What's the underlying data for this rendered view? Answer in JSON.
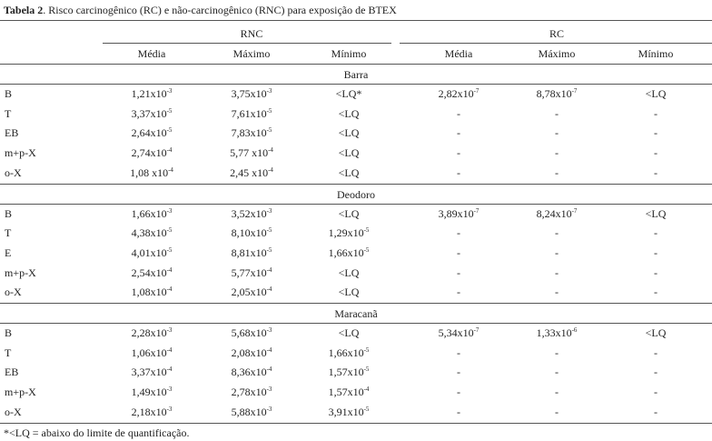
{
  "header": {
    "title_label": "Tabela 2",
    "title_text": ". Risco carcinogênico (RC) e não-carcinogênico (RNC) para exposição de BTEX"
  },
  "table": {
    "groups": [
      "RNC",
      "RC"
    ],
    "columns": [
      "Média",
      "Máximo",
      "Mínimo",
      "Média",
      "Máximo",
      "Mínimo"
    ],
    "sections": [
      {
        "name": "Barra",
        "rows": [
          {
            "label": "B",
            "cells": [
              {
                "m": "1,21x10",
                "e": "-3"
              },
              {
                "m": "3,75x10",
                "e": "-3"
              },
              "<LQ*",
              {
                "m": "2,82x10",
                "e": "-7"
              },
              {
                "m": "8,78x10",
                "e": "-7"
              },
              "<LQ"
            ]
          },
          {
            "label": "T",
            "cells": [
              {
                "m": "3,37x10",
                "e": "-5"
              },
              {
                "m": "7,61x10",
                "e": "-5"
              },
              "<LQ",
              "-",
              "-",
              "-"
            ]
          },
          {
            "label": "EB",
            "cells": [
              {
                "m": "2,64x10",
                "e": "-5"
              },
              {
                "m": "7,83x10",
                "e": "-5"
              },
              "<LQ",
              "-",
              "-",
              "-"
            ]
          },
          {
            "label": "m+p-X",
            "cells": [
              {
                "m": "2,74x10",
                "e": "-4"
              },
              {
                "m": "5,77 x10",
                "e": "-4"
              },
              "<LQ",
              "-",
              "-",
              "-"
            ]
          },
          {
            "label": "o-X",
            "cells": [
              {
                "m": "1,08 x10",
                "e": "-4"
              },
              {
                "m": "2,45 x10",
                "e": "-4"
              },
              "<LQ",
              "-",
              "-",
              "-"
            ]
          }
        ]
      },
      {
        "name": "Deodoro",
        "rows": [
          {
            "label": "B",
            "cells": [
              {
                "m": "1,66x10",
                "e": "-3"
              },
              {
                "m": "3,52x10",
                "e": "-3"
              },
              "<LQ",
              {
                "m": "3,89x10",
                "e": "-7"
              },
              {
                "m": "8,24x10",
                "e": "-7"
              },
              "<LQ"
            ]
          },
          {
            "label": "T",
            "cells": [
              {
                "m": "4,38x10",
                "e": "-5"
              },
              {
                "m": "8,10x10",
                "e": "-5"
              },
              {
                "m": "1,29x10",
                "e": "-5"
              },
              "-",
              "-",
              "-"
            ]
          },
          {
            "label": "E",
            "cells": [
              {
                "m": "4,01x10",
                "e": "-5"
              },
              {
                "m": "8,81x10",
                "e": "-5"
              },
              {
                "m": "1,66x10",
                "e": "-5"
              },
              "-",
              "-",
              "-"
            ]
          },
          {
            "label": "m+p-X",
            "cells": [
              {
                "m": "2,54x10",
                "e": "-4"
              },
              {
                "m": "5,77x10",
                "e": "-4"
              },
              "<LQ",
              "-",
              "-",
              "-"
            ]
          },
          {
            "label": "o-X",
            "cells": [
              {
                "m": "1,08x10",
                "e": "-4"
              },
              {
                "m": "2,05x10",
                "e": "-4"
              },
              "<LQ",
              "-",
              "-",
              "-"
            ]
          }
        ]
      },
      {
        "name": "Maracanã",
        "rows": [
          {
            "label": "B",
            "cells": [
              {
                "m": "2,28x10",
                "e": "-3"
              },
              {
                "m": "5,68x10",
                "e": "-3"
              },
              "<LQ",
              {
                "m": "5,34x10",
                "e": "-7"
              },
              {
                "m": "1,33x10",
                "e": "-6"
              },
              "<LQ"
            ]
          },
          {
            "label": "T",
            "cells": [
              {
                "m": "1,06x10",
                "e": "-4"
              },
              {
                "m": "2,08x10",
                "e": "-4"
              },
              {
                "m": "1,66x10",
                "e": "-5"
              },
              "-",
              "-",
              "-"
            ]
          },
          {
            "label": "EB",
            "cells": [
              {
                "m": "3,37x10",
                "e": "-4"
              },
              {
                "m": "8,36x10",
                "e": "-4"
              },
              {
                "m": "1,57x10",
                "e": "-5"
              },
              "-",
              "-",
              "-"
            ]
          },
          {
            "label": "m+p-X",
            "cells": [
              {
                "m": "1,49x10",
                "e": "-3"
              },
              {
                "m": "2,78x10",
                "e": "-3"
              },
              {
                "m": "1,57x10",
                "e": "-4"
              },
              "-",
              "-",
              "-"
            ]
          },
          {
            "label": "o-X",
            "cells": [
              {
                "m": "2,18x10",
                "e": "-3"
              },
              {
                "m": "5,88x10",
                "e": "-3"
              },
              {
                "m": "3,91x10",
                "e": "-5"
              },
              "-",
              "-",
              "-"
            ]
          }
        ]
      }
    ]
  },
  "footnote": "*<LQ = abaixo do limite de quantificação."
}
